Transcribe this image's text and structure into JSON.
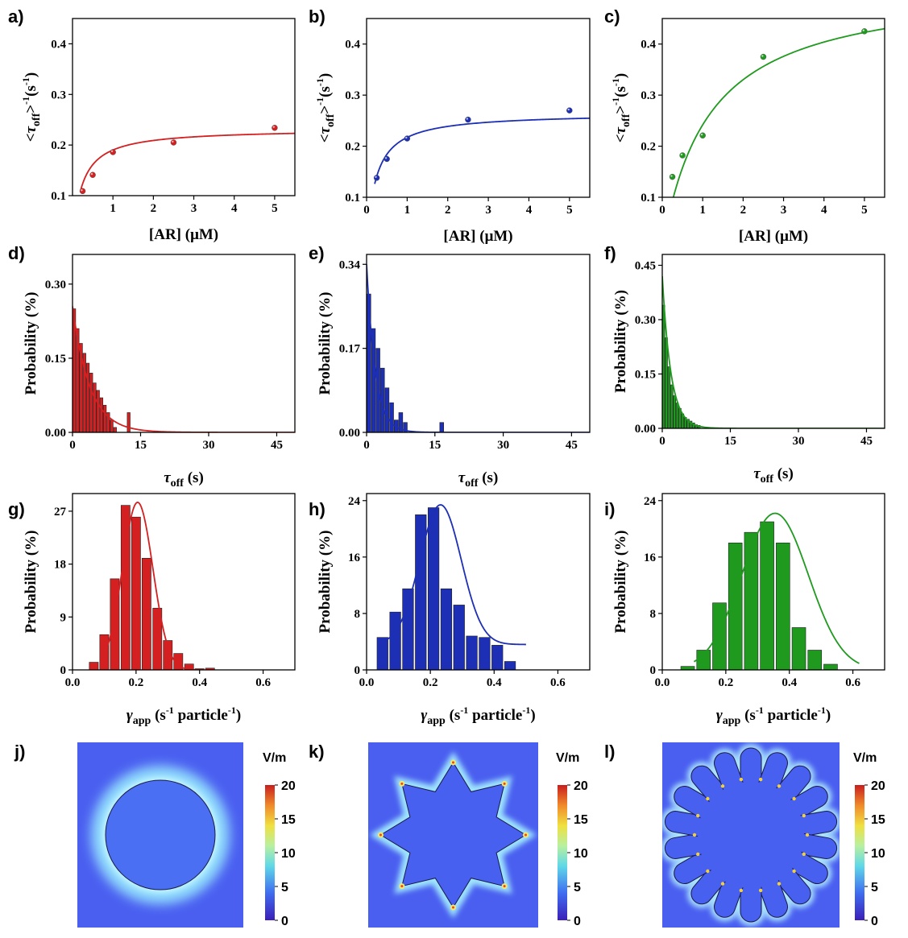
{
  "chart_data": [
    {
      "id": "a",
      "type": "scatter",
      "panel_label": "a)",
      "color": "#d42020",
      "xlabel": "[AR] (μM)",
      "ylabel": "<τoff>-1(s-1)",
      "xlim": [
        0,
        5.5
      ],
      "ylim": [
        0.1,
        0.45
      ],
      "xticks": [
        "1",
        "2",
        "3",
        "4",
        "5"
      ],
      "yticks": [
        "0.1",
        "0.2",
        "0.3",
        "0.4"
      ],
      "points": {
        "x": [
          0.25,
          0.5,
          1,
          2.5,
          5
        ],
        "y": [
          0.109,
          0.141,
          0.186,
          0.205,
          0.234
        ]
      },
      "fit": {
        "form": "langmuir",
        "vmax": 0.232,
        "k": 0.22
      }
    },
    {
      "id": "b",
      "type": "scatter",
      "panel_label": "b)",
      "color": "#1c2fb5",
      "xlabel": "[AR] (μM)",
      "ylabel": "<τoff>-1(s-1)",
      "xlim": [
        0,
        5.5
      ],
      "ylim": [
        0.1,
        0.45
      ],
      "xticks": [
        "0",
        "1",
        "2",
        "3",
        "4",
        "5"
      ],
      "yticks": [
        "0.1",
        "0.2",
        "0.3",
        "0.4"
      ],
      "points": {
        "x": [
          0.25,
          0.5,
          1,
          2.5,
          5
        ],
        "y": [
          0.138,
          0.175,
          0.215,
          0.252,
          0.27
        ]
      },
      "fit": {
        "form": "langmuir",
        "vmax": 0.265,
        "k": 0.22
      }
    },
    {
      "id": "c",
      "type": "scatter",
      "panel_label": "c)",
      "color": "#1f9a1f",
      "xlabel": "[AR] (μM)",
      "ylabel": "<τoff>-1(s-1)",
      "xlim": [
        0,
        5.5
      ],
      "ylim": [
        0.1,
        0.45
      ],
      "xticks": [
        "0",
        "1",
        "2",
        "3",
        "4",
        "5"
      ],
      "yticks": [
        "0.1",
        "0.2",
        "0.3",
        "0.4"
      ],
      "points": {
        "x": [
          0.25,
          0.5,
          1,
          2.5,
          5
        ],
        "y": [
          0.14,
          0.182,
          0.221,
          0.375,
          0.425
        ]
      },
      "fit": {
        "form": "langmuir",
        "vmax": 0.52,
        "k": 1.15
      }
    },
    {
      "id": "d",
      "type": "bar",
      "panel_label": "d)",
      "color": "#d42020",
      "xlabel": "τoff (s)",
      "ylabel": "Probability (%)",
      "xlim": [
        0,
        49
      ],
      "ylim": [
        0,
        0.36
      ],
      "xticks": [
        "0",
        "15",
        "30",
        "45"
      ],
      "yticks": [
        "0.00",
        "0.15",
        "0.30"
      ],
      "bin_width": 0.75,
      "values": [
        0.25,
        0.21,
        0.18,
        0.16,
        0.14,
        0.12,
        0.1,
        0.085,
        0.07,
        0.055,
        0.04,
        0.025,
        0.01,
        0,
        0,
        0,
        0.04
      ],
      "fit": {
        "form": "exp",
        "a": 0.255,
        "tau": 3.8
      }
    },
    {
      "id": "e",
      "type": "bar",
      "panel_label": "e)",
      "color": "#1c2fb5",
      "xlabel": "τoff (s)",
      "ylabel": "Probability (%)",
      "xlim": [
        0,
        49
      ],
      "ylim": [
        0,
        0.36
      ],
      "xticks": [
        "0",
        "15",
        "30",
        "45"
      ],
      "yticks": [
        "0.00",
        "0.17",
        "0.34"
      ],
      "bin_width": 1,
      "values": [
        0.28,
        0.21,
        0.17,
        0.13,
        0.09,
        0.06,
        0.025,
        0.04,
        0.02,
        0,
        0,
        0,
        0,
        0,
        0,
        0,
        0.02
      ],
      "fit": {
        "form": "exp",
        "a": 0.34,
        "tau": 1.9
      }
    },
    {
      "id": "f",
      "type": "bar",
      "panel_label": "f)",
      "color": "#1f9a1f",
      "xlabel": "τoff (s)",
      "ylabel": "Probability (%)",
      "xlim": [
        0,
        49
      ],
      "ylim": [
        0,
        0.48
      ],
      "xticks": [
        "0",
        "15",
        "30",
        "45"
      ],
      "yticks": [
        "0.00",
        "0.15",
        "0.30",
        "0.45"
      ],
      "bin_width": 0.6,
      "values": [
        0.34,
        0.25,
        0.17,
        0.12,
        0.09,
        0.07,
        0.055,
        0.04,
        0.03,
        0.025,
        0.02,
        0.015,
        0.01,
        0.008
      ],
      "fit": {
        "form": "exp",
        "a": 0.42,
        "tau": 1.9
      }
    },
    {
      "id": "g",
      "type": "bar",
      "panel_label": "g)",
      "color": "#d42020",
      "xlabel": "γapp (s-1 particle-1)",
      "ylabel": "Probability (%)",
      "xlim": [
        0,
        0.7
      ],
      "ylim": [
        0,
        30
      ],
      "xticks": [
        "0.0",
        "0.2",
        "0.4",
        "0.6"
      ],
      "yticks": [
        "0",
        "9",
        "18",
        "27"
      ],
      "bin_width": 0.033,
      "bin_centers": [
        0.067,
        0.1,
        0.133,
        0.167,
        0.2,
        0.233,
        0.267,
        0.3,
        0.333,
        0.367,
        0.4,
        0.433
      ],
      "values": [
        1.3,
        6,
        15.5,
        28,
        26,
        19,
        10.5,
        5,
        2.8,
        1,
        0.2,
        0.3
      ],
      "fit": {
        "form": "gauss",
        "a": 28.5,
        "mu": 0.205,
        "sigma": 0.048,
        "xmin": 0.1,
        "xmax": 0.4
      }
    },
    {
      "id": "h",
      "type": "bar",
      "panel_label": "h)",
      "color": "#1c2fb5",
      "xlabel": "γapp (s-1 particle-1)",
      "ylabel": "Probability (%)",
      "xlim": [
        0,
        0.7
      ],
      "ylim": [
        0,
        25
      ],
      "xticks": [
        "0.0",
        "0.2",
        "0.4",
        "0.6"
      ],
      "yticks": [
        "0",
        "8",
        "16",
        "24"
      ],
      "bin_width": 0.04,
      "bin_centers": [
        0.05,
        0.09,
        0.13,
        0.17,
        0.21,
        0.25,
        0.29,
        0.33,
        0.37,
        0.41,
        0.45,
        0.49
      ],
      "values": [
        4.6,
        8.2,
        11.5,
        22,
        23,
        11.5,
        9.2,
        4.8,
        4.6,
        3.5,
        1.2,
        0
      ],
      "fit": {
        "form": "gauss",
        "a": 19.8,
        "mu": 0.232,
        "sigma": 0.065,
        "offset": 3.6,
        "xmin": 0.05,
        "xmax": 0.5
      }
    },
    {
      "id": "i",
      "type": "bar",
      "panel_label": "i)",
      "color": "#1f9a1f",
      "xlabel": "γapp (s-1 particle-1)",
      "ylabel": "Probability (%)",
      "xlim": [
        0,
        0.7
      ],
      "ylim": [
        0,
        25
      ],
      "xticks": [
        "0.0",
        "0.2",
        "0.4",
        "0.6"
      ],
      "yticks": [
        "0",
        "8",
        "16",
        "24"
      ],
      "bin_width": 0.05,
      "bin_centers": [
        0.08,
        0.13,
        0.18,
        0.23,
        0.28,
        0.33,
        0.38,
        0.43,
        0.48,
        0.53,
        0.58,
        0.63
      ],
      "values": [
        0.5,
        2.8,
        9.5,
        18,
        19.5,
        21,
        18,
        6,
        2.8,
        0.8,
        0,
        0
      ],
      "fit": {
        "form": "gauss",
        "a": 22.2,
        "mu": 0.355,
        "sigma": 0.105,
        "xmin": 0.1,
        "xmax": 0.62
      }
    }
  ],
  "field_maps": [
    {
      "id": "j",
      "panel_label": "j)",
      "shape": "circle",
      "unit": "V/m",
      "cbar_ticks": [
        "20",
        "15",
        "10",
        "5",
        "0"
      ]
    },
    {
      "id": "k",
      "panel_label": "k)",
      "shape": "star",
      "unit": "V/m",
      "cbar_ticks": [
        "20",
        "15",
        "10",
        "5",
        "0"
      ]
    },
    {
      "id": "l",
      "panel_label": "l)",
      "shape": "flower",
      "unit": "V/m",
      "cbar_ticks": [
        "20",
        "15",
        "10",
        "5",
        "0"
      ]
    }
  ]
}
